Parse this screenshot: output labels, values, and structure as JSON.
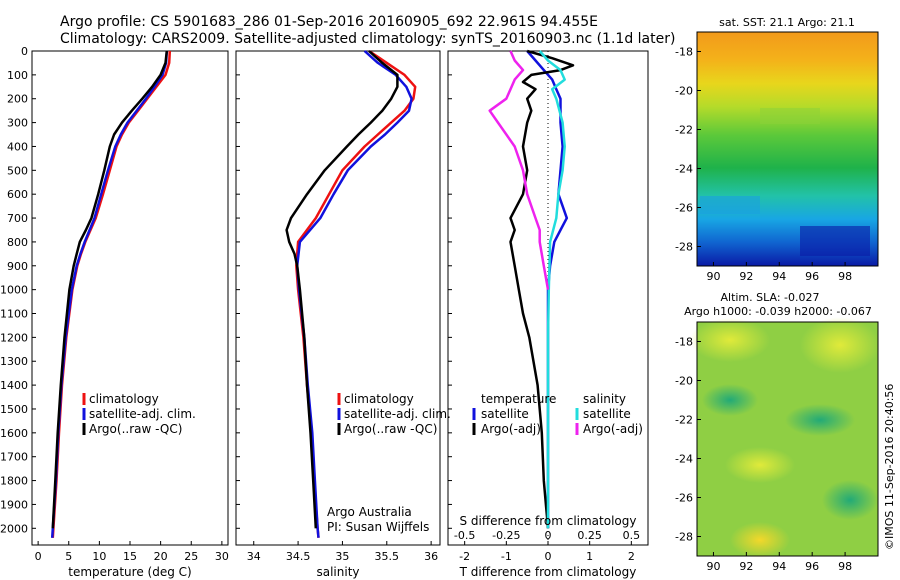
{
  "header": {
    "line1": "Argo profile: CS 5901683_286 01-Sep-2016 20160905_692 22.961S 94.455E",
    "line2": "Climatology: CARS2009. Satellite-adjusted climatology: synTS_20160903.nc (1.1d later)"
  },
  "credit": "Argo Australia",
  "pi": "PI: Susan Wijffels",
  "stamp": "©IMOS 11-Sep-2016 20:40:56",
  "colors": {
    "climatology": "#ee1111",
    "satellite": "#1111dd",
    "argo": "#000000",
    "sal_satellite": "#22dddd",
    "sal_argo": "#ee22ee"
  },
  "chart_data": [
    {
      "type": "line",
      "xlabel": "temperature (deg C)",
      "xlim": [
        -1,
        31
      ],
      "xticks": [
        0,
        5,
        10,
        15,
        20,
        25,
        30
      ],
      "ylim": [
        2070,
        0
      ],
      "yticks": [
        0,
        100,
        200,
        300,
        400,
        500,
        600,
        700,
        800,
        900,
        1000,
        1100,
        1200,
        1300,
        1400,
        1500,
        1600,
        1700,
        1800,
        1900,
        2000
      ],
      "legend": [
        "climatology",
        "satellite-adj. clim.",
        "Argo(..raw -QC)"
      ],
      "series": [
        {
          "key": "climatology",
          "depth": [
            0,
            50,
            100,
            150,
            200,
            250,
            300,
            350,
            400,
            500,
            600,
            700,
            800,
            850,
            900,
            1000,
            1200,
            1400,
            1600,
            1800,
            2000,
            2040
          ],
          "values": [
            21.5,
            21.4,
            20.8,
            19.3,
            17.8,
            16.3,
            14.8,
            13.7,
            12.8,
            11.7,
            10.6,
            9.4,
            7.7,
            7.0,
            6.4,
            5.6,
            4.6,
            3.9,
            3.4,
            3.0,
            2.5,
            2.4
          ]
        },
        {
          "key": "satellite",
          "depth": [
            0,
            50,
            100,
            150,
            200,
            250,
            300,
            350,
            400,
            500,
            600,
            700,
            800,
            850,
            900,
            1000,
            1200,
            1400,
            1600,
            1800,
            2000,
            2040
          ],
          "values": [
            21.0,
            20.9,
            20.3,
            19.0,
            17.6,
            16.1,
            14.6,
            13.5,
            12.6,
            11.4,
            10.3,
            9.2,
            7.6,
            6.9,
            6.3,
            5.5,
            4.5,
            3.8,
            3.3,
            2.9,
            2.4,
            2.3
          ]
        },
        {
          "key": "argo",
          "depth": [
            0,
            50,
            100,
            150,
            200,
            250,
            300,
            350,
            400,
            500,
            600,
            700,
            750,
            800,
            850,
            900,
            1000,
            1200,
            1400,
            1600,
            1800,
            2000
          ],
          "values": [
            21.0,
            20.8,
            20.0,
            18.6,
            17.0,
            15.3,
            13.7,
            12.4,
            11.7,
            10.8,
            9.8,
            8.7,
            7.8,
            6.8,
            6.3,
            5.8,
            5.1,
            4.3,
            3.7,
            3.2,
            2.8,
            2.4
          ]
        }
      ]
    },
    {
      "type": "line",
      "xlabel": "salinity",
      "xlim": [
        33.8,
        36.1
      ],
      "xticks": [
        34,
        34.5,
        35,
        35.5,
        36
      ],
      "ylim": [
        2070,
        0
      ],
      "legend": [
        "climatology",
        "satellite-adj. clim.",
        "Argo(..raw -QC)"
      ],
      "series": [
        {
          "key": "climatology",
          "depth": [
            0,
            50,
            100,
            150,
            200,
            250,
            300,
            350,
            400,
            500,
            600,
            700,
            800,
            900,
            1000,
            1200,
            1400,
            1600,
            1800,
            2000,
            2040
          ],
          "values": [
            35.3,
            35.5,
            35.7,
            35.82,
            35.8,
            35.7,
            35.55,
            35.4,
            35.25,
            35.0,
            34.85,
            34.7,
            34.5,
            34.48,
            34.5,
            34.56,
            34.6,
            34.65,
            34.68,
            34.72,
            34.73
          ]
        },
        {
          "key": "satellite",
          "depth": [
            0,
            50,
            100,
            150,
            200,
            250,
            300,
            350,
            400,
            500,
            600,
            700,
            800,
            900,
            1000,
            1200,
            1400,
            1600,
            1800,
            2000,
            2040
          ],
          "values": [
            35.25,
            35.4,
            35.6,
            35.72,
            35.78,
            35.75,
            35.62,
            35.48,
            35.32,
            35.06,
            34.9,
            34.75,
            34.52,
            34.49,
            34.51,
            34.57,
            34.61,
            34.66,
            34.69,
            34.72,
            34.73
          ]
        },
        {
          "key": "argo",
          "depth": [
            0,
            50,
            100,
            150,
            200,
            250,
            300,
            350,
            400,
            500,
            600,
            700,
            750,
            800,
            850,
            900,
            1000,
            1200,
            1400,
            1600,
            1800,
            2000
          ],
          "values": [
            35.3,
            35.45,
            35.62,
            35.62,
            35.55,
            35.45,
            35.32,
            35.18,
            35.05,
            34.8,
            34.6,
            34.42,
            34.37,
            34.4,
            34.46,
            34.49,
            34.52,
            34.57,
            34.6,
            34.64,
            34.67,
            34.7
          ]
        }
      ]
    },
    {
      "type": "line",
      "xlabel": "T difference from climatology",
      "xlabel_top": "S difference from climatology",
      "xlim": [
        -2.4,
        2.4
      ],
      "xticks": [
        -2,
        -1,
        0,
        1,
        2
      ],
      "sticks_labels": [
        "-0.5",
        "-0.25",
        "0",
        "0.25",
        "0.5"
      ],
      "ylim": [
        2070,
        0
      ],
      "legend_titles": [
        "temperature",
        "salinity"
      ],
      "legend": [
        "satellite",
        "Argo(-adj)",
        "satellite",
        "Argo(-adj)"
      ],
      "series": [
        {
          "key": "satellite",
          "depth": [
            0,
            40,
            80,
            120,
            160,
            200,
            300,
            400,
            500,
            600,
            650,
            700,
            750,
            800,
            900,
            1000,
            1200,
            1400,
            1600,
            1800,
            2000
          ],
          "values": [
            -0.5,
            -0.3,
            -0.1,
            0.1,
            0.2,
            0.3,
            0.3,
            0.35,
            0.3,
            0.25,
            0.35,
            0.45,
            0.3,
            0.15,
            0.05,
            0.0,
            0.0,
            0.0,
            0.0,
            0.0,
            0.0
          ]
        },
        {
          "key": "argo",
          "depth": [
            0,
            30,
            60,
            80,
            100,
            130,
            160,
            200,
            250,
            300,
            400,
            500,
            600,
            700,
            750,
            800,
            900,
            1000,
            1100,
            1200,
            1400,
            1600,
            1800,
            2000
          ],
          "values": [
            -0.5,
            0.1,
            0.6,
            0.3,
            -0.4,
            -0.6,
            -0.3,
            -0.5,
            -0.4,
            -0.5,
            -0.6,
            -0.5,
            -0.6,
            -0.9,
            -0.8,
            -0.9,
            -0.8,
            -0.7,
            -0.6,
            -0.45,
            -0.25,
            -0.15,
            -0.1,
            0.0
          ]
        },
        {
          "key": "sal_satellite",
          "depth": [
            0,
            40,
            80,
            120,
            160,
            200,
            300,
            400,
            500,
            600,
            700,
            800,
            1000,
            1200,
            1400,
            1600,
            1800,
            2000
          ],
          "values": [
            -0.2,
            0.0,
            0.3,
            0.4,
            0.1,
            0.2,
            0.35,
            0.4,
            0.35,
            0.25,
            0.2,
            0.05,
            0.02,
            0.0,
            0.0,
            0.0,
            0.0,
            0.0
          ]
        },
        {
          "key": "sal_argo",
          "depth": [
            0,
            40,
            80,
            120,
            160,
            200,
            250,
            300,
            400,
            500,
            600,
            700,
            750,
            800,
            900,
            1000
          ],
          "values": [
            -0.9,
            -0.8,
            -0.6,
            -0.8,
            -0.9,
            -1.0,
            -1.4,
            -1.2,
            -0.8,
            -0.6,
            -0.5,
            -0.3,
            -0.2,
            -0.2,
            -0.1,
            0.0
          ]
        }
      ]
    },
    {
      "type": "heatmap",
      "title": "sat. SST: 21.1  Argo: 21.1",
      "xticks": [
        90,
        92,
        94,
        96,
        98
      ],
      "yticks": [
        -18,
        -20,
        -22,
        -24,
        -26,
        -28
      ],
      "xlim": [
        89,
        100
      ],
      "ylim": [
        -29,
        -17
      ]
    },
    {
      "type": "heatmap",
      "title": "Altim. SLA: -0.027",
      "subtitle": "Argo h1000: -0.039 h2000: -0.067",
      "xticks": [
        90,
        92,
        94,
        96,
        98
      ],
      "yticks": [
        -18,
        -20,
        -22,
        -24,
        -26,
        -28
      ],
      "xlim": [
        89,
        100
      ],
      "ylim": [
        -29,
        -17
      ]
    }
  ]
}
